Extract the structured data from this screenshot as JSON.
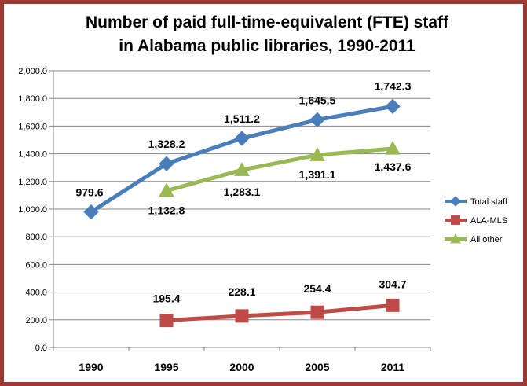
{
  "chart_data": {
    "type": "line",
    "title_line1": "Number of paid full-time-equivalent (FTE) staff",
    "title_line2": "in Alabama public libraries, 1990-2011",
    "categories": [
      "1990",
      "1995",
      "2000",
      "2005",
      "2011"
    ],
    "ylim": [
      0,
      2000
    ],
    "y_ticks": [
      "0.0",
      "200.0",
      "400.0",
      "600.0",
      "800.0",
      "1,000.0",
      "1,200.0",
      "1,400.0",
      "1,600.0",
      "1,800.0",
      "2,000.0"
    ],
    "grid": true,
    "legend_position": "right",
    "series": [
      {
        "name": "Total staff",
        "color": "#4a7ebb",
        "marker": "diamond",
        "values": [
          979.6,
          1328.2,
          1511.2,
          1645.5,
          1742.3
        ],
        "labels": [
          "979.6",
          "1,328.2",
          "1,511.2",
          "1,645.5",
          "1,742.3"
        ]
      },
      {
        "name": "ALA-MLS",
        "color": "#be4b48",
        "marker": "square",
        "values": [
          null,
          195.4,
          228.1,
          254.4,
          304.7
        ],
        "labels": [
          "",
          "195.4",
          "228.1",
          "254.4",
          "304.7"
        ]
      },
      {
        "name": "All other",
        "color": "#98b954",
        "marker": "triangle",
        "values": [
          null,
          1132.8,
          1283.1,
          1391.1,
          1437.6
        ],
        "labels": [
          "",
          "1,132.8",
          "1,283.1",
          "1,391.1",
          "1,437.6"
        ]
      }
    ]
  }
}
